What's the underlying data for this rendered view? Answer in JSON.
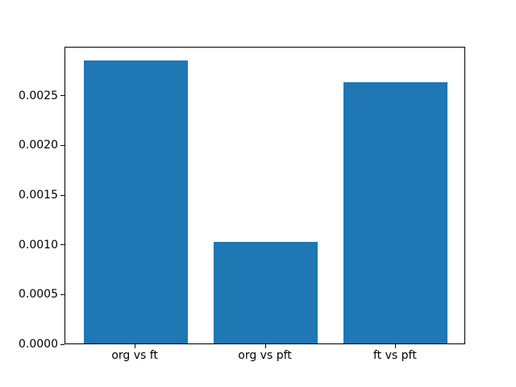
{
  "chart_data": {
    "type": "bar",
    "title": "",
    "xlabel": "",
    "ylabel": "",
    "categories": [
      "org vs ft",
      "org vs pft",
      "ft vs pft"
    ],
    "values": [
      0.00285,
      0.00102,
      0.00263
    ],
    "ylim": [
      0,
      0.0029925
    ],
    "yticks": [
      0.0,
      0.0005,
      0.001,
      0.0015,
      0.002,
      0.0025
    ],
    "ytick_labels": [
      "0.0000",
      "0.0005",
      "0.0010",
      "0.0015",
      "0.0020",
      "0.0025"
    ],
    "bar_color": "#1f77b4",
    "axis_color": "#000000",
    "background_color": "#ffffff",
    "grid": false,
    "legend": null,
    "bar_width_fraction": 0.8
  }
}
